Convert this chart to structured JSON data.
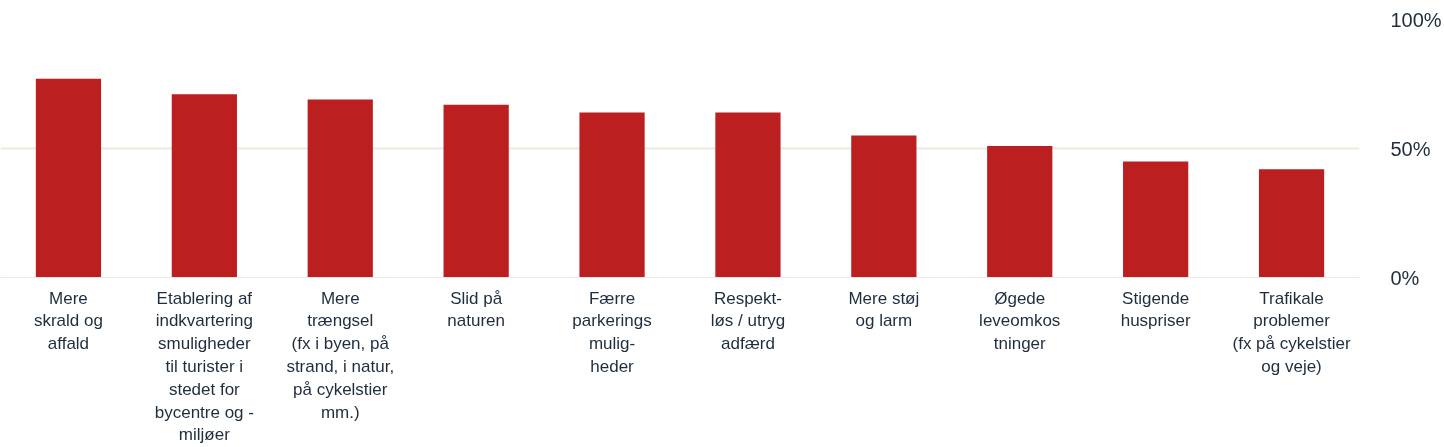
{
  "chart_data": {
    "type": "bar",
    "categories": [
      "Mere\nskrald og\naffald",
      "Etablering af\nindkvartering\nsmuligheder\ntil turister i\nstedet for\nbycentre og -\nmiljøer",
      "Mere\ntrængsel\n(fx i byen, på\nstrand, i natur,\npå cykelstier\nmm.)",
      "Slid på\nnaturen",
      "Færre\nparkerings\nmulig-\nheder",
      "Respekt-\nløs / utryg\nadfærd",
      "Mere støj\nog larm",
      "Øgede\nleveomkos\ntninger",
      "Stigende\nhuspriser",
      "Trafikale\nproblemer\n(fx på cykelstier\nog veje)"
    ],
    "values": [
      77,
      71,
      69,
      67,
      64,
      64,
      55,
      51,
      45,
      42
    ],
    "color": "#bc1f1f",
    "ylim": [
      0,
      100
    ],
    "yticks": [
      {
        "value": 0,
        "label": "0%"
      },
      {
        "value": 50,
        "label": "50%"
      },
      {
        "value": 100,
        "label": "100%"
      }
    ],
    "grid": "y"
  }
}
